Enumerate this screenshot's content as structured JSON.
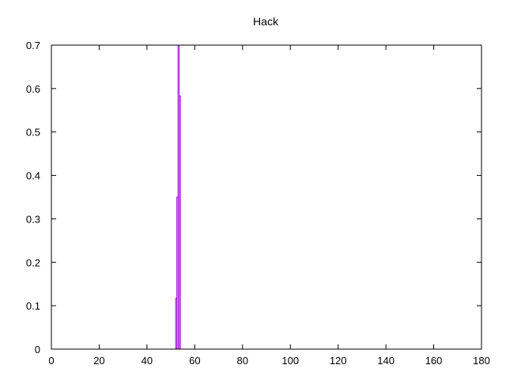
{
  "chart_data": {
    "type": "line",
    "title": "Hack",
    "xlabel": "",
    "ylabel": "",
    "xlim": [
      0,
      180
    ],
    "ylim": [
      0,
      0.7
    ],
    "x_ticks": [
      0,
      20,
      40,
      60,
      80,
      100,
      120,
      140,
      160,
      180
    ],
    "y_ticks": [
      0,
      0.1,
      0.2,
      0.3,
      0.4,
      0.5,
      0.6,
      0.7
    ],
    "grid": false,
    "legend": "none",
    "series": [
      {
        "color": "#9400d3",
        "step": true,
        "x": [
          51,
          52,
          52.5,
          53,
          53.5,
          54
        ],
        "y": [
          0,
          0.117,
          0.35,
          0.7,
          0.583,
          0.117
        ]
      }
    ]
  }
}
